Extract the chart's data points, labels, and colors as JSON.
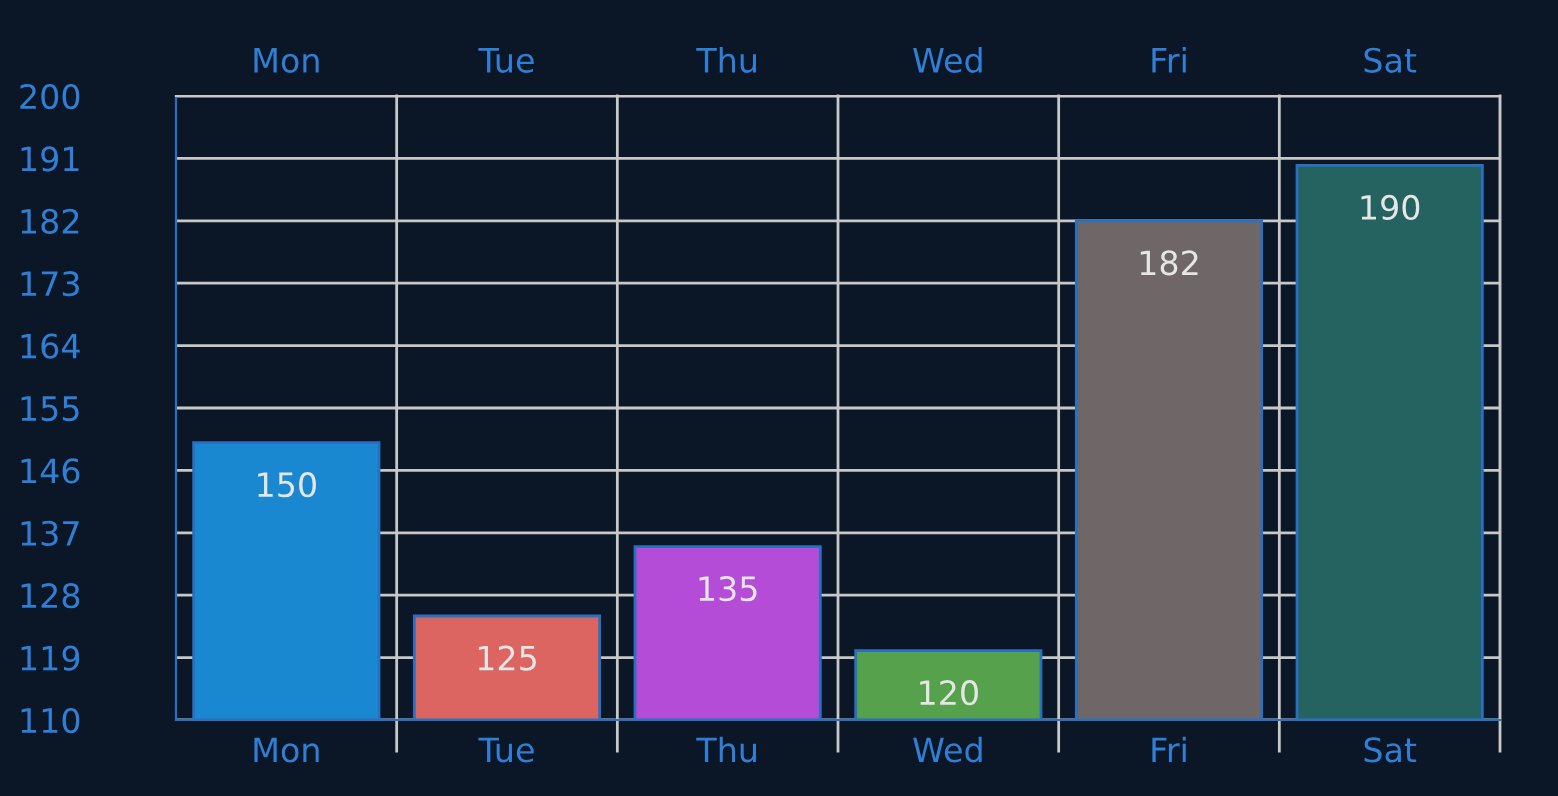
{
  "chart_data": {
    "type": "bar",
    "categories": [
      "Mon",
      "Tue",
      "Thu",
      "Wed",
      "Fri",
      "Sat"
    ],
    "values": [
      150,
      125,
      135,
      120,
      182,
      190
    ],
    "colors": [
      "#1a88d0",
      "#dd6561",
      "#b44cd8",
      "#55a14c",
      "#6f6767",
      "#24635f"
    ],
    "ylim": [
      110,
      200
    ],
    "yticks": [
      110,
      119,
      128,
      137,
      146,
      155,
      164,
      173,
      182,
      191,
      200
    ],
    "grid": true,
    "data_labels": true
  }
}
